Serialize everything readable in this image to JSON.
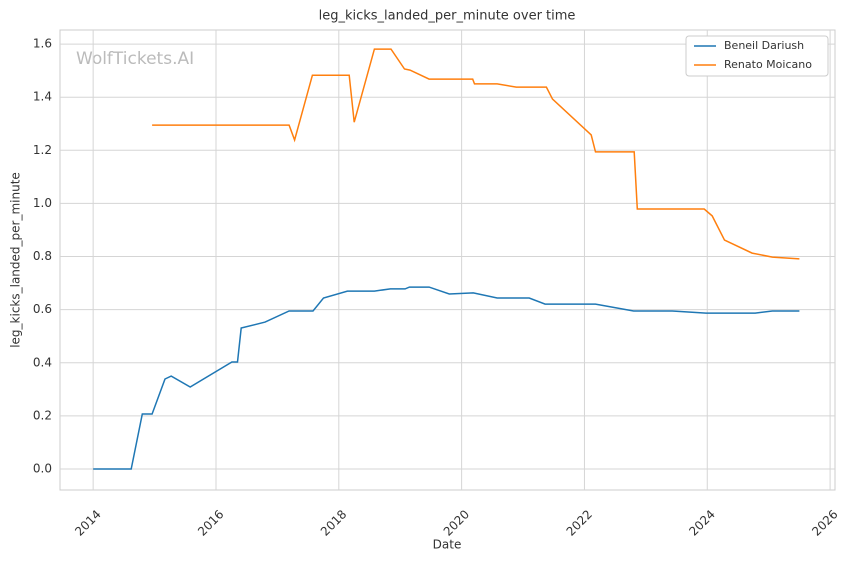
{
  "chart_data": {
    "type": "line",
    "title": "leg_kicks_landed_per_minute over time",
    "xlabel": "Date",
    "ylabel": "leg_kicks_landed_per_minute",
    "watermark": "WolfTickets.AI",
    "xlim": [
      2013.46,
      2026.08
    ],
    "xticks": [
      2014,
      2016,
      2018,
      2020,
      2022,
      2024,
      2026
    ],
    "ylim": [
      -0.079,
      1.653
    ],
    "yticks": [
      {
        "value": 0,
        "label": "0.0"
      },
      {
        "value": 0.2,
        "label": "0.2"
      },
      {
        "value": 0.4,
        "label": "0.4"
      },
      {
        "value": 0.6,
        "label": "0.6"
      },
      {
        "value": 0.8,
        "label": "0.8"
      },
      {
        "value": 1,
        "label": "1.0"
      },
      {
        "value": 1.2,
        "label": "1.2"
      },
      {
        "value": 1.4,
        "label": "1.4"
      },
      {
        "value": 1.6,
        "label": "1.6"
      }
    ],
    "grid": true,
    "legend": "upper right",
    "series": [
      {
        "name": "Beneil Dariush",
        "color": "#1f77b4",
        "x": [
          2014.0,
          2014.62,
          2014.8,
          2014.96,
          2015.17,
          2015.27,
          2015.58,
          2016.26,
          2016.35,
          2016.41,
          2016.8,
          2017.19,
          2017.58,
          2017.75,
          2018.14,
          2018.58,
          2018.84,
          2019.08,
          2019.15,
          2019.47,
          2019.8,
          2020.19,
          2020.58,
          2021.1,
          2021.36,
          2022.18,
          2022.8,
          2023.43,
          2023.98,
          2024.78,
          2025.06,
          2025.5
        ],
        "values": [
          0,
          0,
          0.207,
          0.207,
          0.339,
          0.35,
          0.309,
          0.403,
          0.403,
          0.531,
          0.553,
          0.595,
          0.595,
          0.644,
          0.67,
          0.67,
          0.678,
          0.678,
          0.685,
          0.685,
          0.659,
          0.663,
          0.644,
          0.644,
          0.621,
          0.621,
          0.595,
          0.595,
          0.587,
          0.587,
          0.595,
          0.595
        ]
      },
      {
        "name": "Renato Moicano",
        "color": "#ff7f0e",
        "x": [
          2014.96,
          2017.19,
          2017.28,
          2017.57,
          2018.17,
          2018.25,
          2018.58,
          2018.85,
          2019.07,
          2019.16,
          2019.47,
          2020.18,
          2020.21,
          2020.58,
          2020.89,
          2021.38,
          2021.48,
          2022.11,
          2022.18,
          2022.81,
          2022.86,
          2023.95,
          2024.08,
          2024.28,
          2024.73,
          2025.06,
          2025.5
        ],
        "values": [
          1.295,
          1.295,
          1.239,
          1.483,
          1.483,
          1.306,
          1.581,
          1.581,
          1.506,
          1.502,
          1.468,
          1.468,
          1.45,
          1.45,
          1.438,
          1.438,
          1.393,
          1.258,
          1.194,
          1.194,
          0.979,
          0.979,
          0.953,
          0.862,
          0.813,
          0.798,
          0.791
        ]
      }
    ]
  }
}
